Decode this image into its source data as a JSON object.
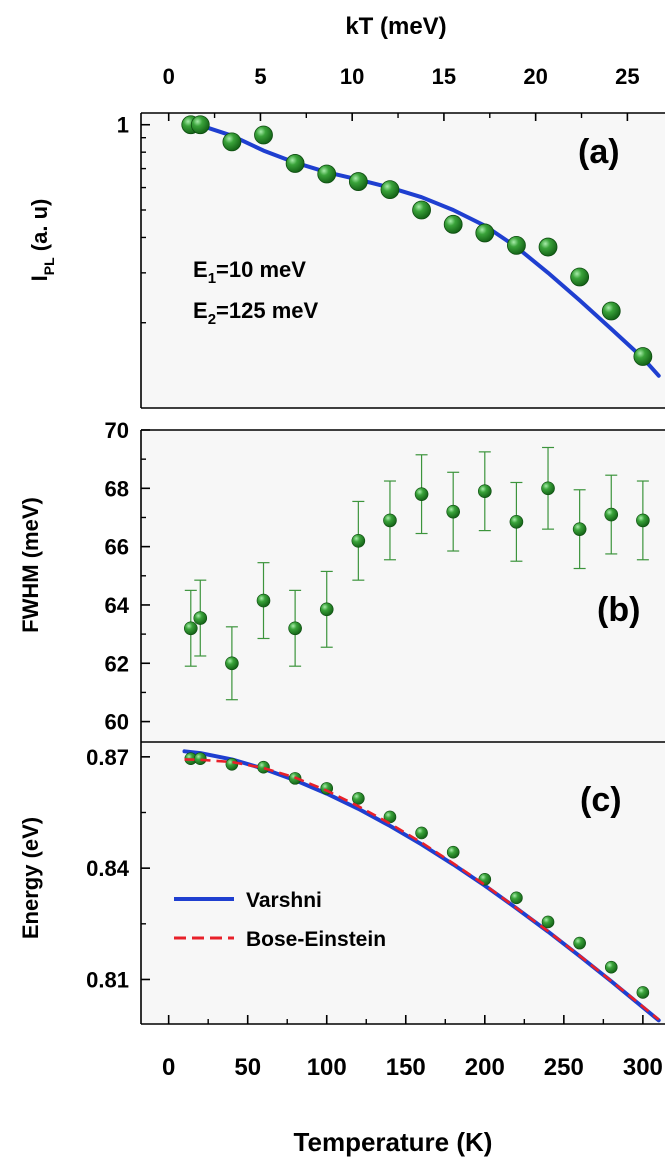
{
  "colors": {
    "background": "#ffffff",
    "plot_bg": "#f7f7f7",
    "axis": "#000000",
    "marker": "#1e7a1e",
    "marker_highlight": "#9fe39f",
    "varshni_line": "#1f3fd0",
    "bose_line": "#e8202a",
    "errorbar": "#3c943c"
  },
  "chart_data": [
    {
      "panel_label": "(a)",
      "type": "scatter",
      "title": "",
      "top_axis": {
        "label": "kT (meV)",
        "ticks": [
          0,
          5,
          10,
          15,
          20,
          25
        ],
        "range": [
          -1.51,
          27.05
        ]
      },
      "xlabel": "",
      "ylabel": "I_PL (a. u)",
      "ylabel_main": "I",
      "ylabel_sub": "PL",
      "ylabel_rest": " (a. u)",
      "ylim": [
        0.1,
        1.1
      ],
      "y_scale": "log",
      "yticks": [
        1
      ],
      "annotations": [
        {
          "main": "E",
          "sub": "1",
          "rest": "=10 meV"
        },
        {
          "main": "E",
          "sub": "2",
          "rest": "=125 meV"
        }
      ],
      "series": [
        {
          "type": "scatter",
          "points": [
            [
              14,
              1.0
            ],
            [
              20,
              1.0
            ],
            [
              40,
              0.87
            ],
            [
              60,
              0.92
            ],
            [
              80,
              0.73
            ],
            [
              100,
              0.67
            ],
            [
              120,
              0.63
            ],
            [
              140,
              0.59
            ],
            [
              160,
              0.5
            ],
            [
              180,
              0.445
            ],
            [
              200,
              0.415
            ],
            [
              220,
              0.375
            ],
            [
              240,
              0.37
            ],
            [
              260,
              0.29
            ],
            [
              280,
              0.22
            ],
            [
              300,
              0.152
            ]
          ]
        },
        {
          "type": "line",
          "points": [
            [
              10,
              1.0
            ],
            [
              20,
              0.995
            ],
            [
              40,
              0.915
            ],
            [
              60,
              0.81
            ],
            [
              80,
              0.735
            ],
            [
              100,
              0.68
            ],
            [
              120,
              0.64
            ],
            [
              140,
              0.6
            ],
            [
              160,
              0.555
            ],
            [
              180,
              0.5
            ],
            [
              200,
              0.44
            ],
            [
              220,
              0.37
            ],
            [
              240,
              0.3
            ],
            [
              260,
              0.24
            ],
            [
              280,
              0.19
            ],
            [
              300,
              0.15
            ],
            [
              310,
              0.13
            ]
          ]
        }
      ]
    },
    {
      "panel_label": "(b)",
      "type": "scatter",
      "title": "",
      "xlabel": "",
      "ylabel": "FWHM (meV)",
      "ylim": [
        59.3,
        70
      ],
      "yticks": [
        60,
        62,
        64,
        66,
        68,
        70
      ],
      "series": [
        {
          "type": "scatter",
          "points": [
            [
              14,
              63.2
            ],
            [
              20,
              63.55
            ],
            [
              40,
              62.0
            ],
            [
              60,
              64.15
            ],
            [
              80,
              63.2
            ],
            [
              100,
              63.85
            ],
            [
              120,
              66.2
            ],
            [
              140,
              66.9
            ],
            [
              160,
              67.8
            ],
            [
              180,
              67.2
            ],
            [
              200,
              67.9
            ],
            [
              220,
              66.85
            ],
            [
              240,
              68.0
            ],
            [
              260,
              66.6
            ],
            [
              280,
              67.1
            ],
            [
              300,
              66.9
            ]
          ],
          "errors": [
            1.3,
            1.3,
            1.25,
            1.3,
            1.3,
            1.3,
            1.35,
            1.35,
            1.35,
            1.35,
            1.35,
            1.35,
            1.4,
            1.35,
            1.35,
            1.35
          ]
        }
      ]
    },
    {
      "panel_label": "(c)",
      "type": "line",
      "title": "",
      "xlabel": "Temperature (K)",
      "ylabel": "Energy (eV)",
      "xlim": [
        -17.5,
        314
      ],
      "xticks": [
        0,
        50,
        100,
        150,
        200,
        250,
        300
      ],
      "ylim": [
        0.798,
        0.874
      ],
      "yticks": [
        0.81,
        0.84,
        0.87
      ],
      "legend": {
        "position": "center-left",
        "entries": [
          "Varshni",
          "Bose-Einstein"
        ]
      },
      "series": [
        {
          "name": "data",
          "type": "scatter",
          "points": [
            [
              14,
              0.8695
            ],
            [
              20,
              0.8695
            ],
            [
              40,
              0.868
            ],
            [
              60,
              0.8672
            ],
            [
              80,
              0.8642
            ],
            [
              100,
              0.8615
            ],
            [
              120,
              0.8588
            ],
            [
              140,
              0.8538
            ],
            [
              160,
              0.8495
            ],
            [
              180,
              0.8443
            ],
            [
              200,
              0.837
            ],
            [
              220,
              0.832
            ],
            [
              240,
              0.8255
            ],
            [
              260,
              0.8198
            ],
            [
              280,
              0.8133
            ],
            [
              300,
              0.8065
            ]
          ]
        },
        {
          "name": "Varshni",
          "type": "line",
          "points": [
            [
              10,
              0.8715
            ],
            [
              20,
              0.871
            ],
            [
              40,
              0.8693
            ],
            [
              60,
              0.8668
            ],
            [
              80,
              0.8637
            ],
            [
              100,
              0.8601
            ],
            [
              120,
              0.856
            ],
            [
              140,
              0.8514
            ],
            [
              160,
              0.8464
            ],
            [
              180,
              0.841
            ],
            [
              200,
              0.8353
            ],
            [
              220,
              0.8292
            ],
            [
              240,
              0.8229
            ],
            [
              260,
              0.8163
            ],
            [
              280,
              0.8095
            ],
            [
              300,
              0.8025
            ],
            [
              310,
              0.799
            ]
          ]
        },
        {
          "name": "Bose-Einstein",
          "type": "line",
          "dashed": true,
          "points": [
            [
              10,
              0.8693
            ],
            [
              20,
              0.8692
            ],
            [
              40,
              0.8686
            ],
            [
              60,
              0.867
            ],
            [
              80,
              0.8644
            ],
            [
              100,
              0.8609
            ],
            [
              120,
              0.8567
            ],
            [
              140,
              0.852
            ],
            [
              160,
              0.8469
            ],
            [
              180,
              0.8413
            ],
            [
              200,
              0.8355
            ],
            [
              220,
              0.8293
            ],
            [
              240,
              0.823
            ],
            [
              260,
              0.8164
            ],
            [
              280,
              0.8096
            ],
            [
              300,
              0.8027
            ],
            [
              310,
              0.7992
            ]
          ]
        }
      ]
    }
  ]
}
